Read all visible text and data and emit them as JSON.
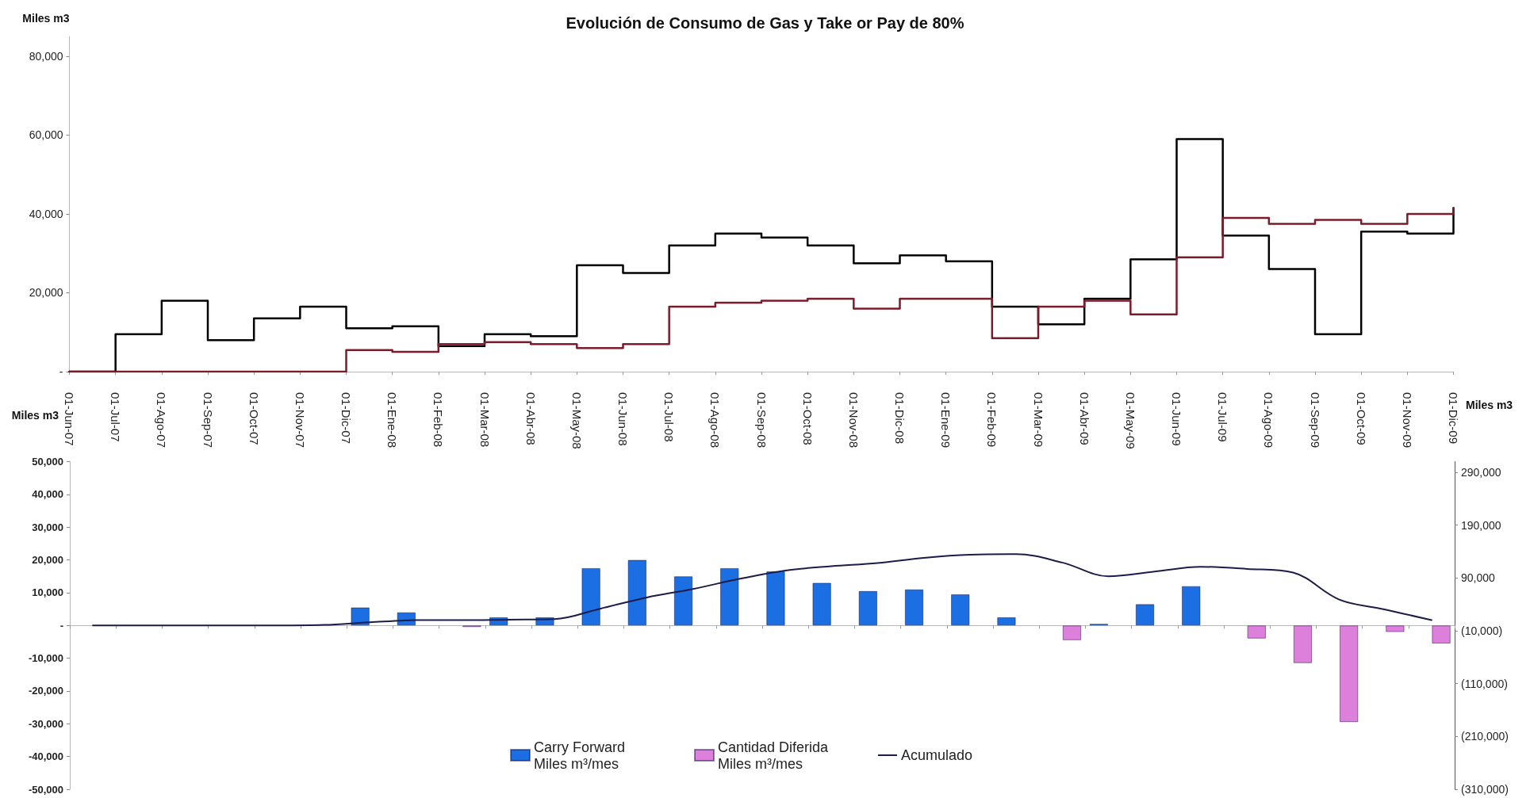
{
  "chart_data": [
    {
      "type": "step",
      "title": "Evolución de Consumo de Gas y Take or Pay de 80%",
      "ylabel": "Miles m3",
      "categories": [
        "01-Jun-07",
        "01-Jul-07",
        "01-Ago-07",
        "01-Sep-07",
        "01-Oct-07",
        "01-Nov-07",
        "01-Dic-07",
        "01-Ene-08",
        "01-Feb-08",
        "01-Mar-08",
        "01-Abr-08",
        "01-May-08",
        "01-Jun-08",
        "01-Jul-08",
        "01-Ago-08",
        "01-Sep-08",
        "01-Oct-08",
        "01-Nov-08",
        "01-Dic-08",
        "01-Ene-09",
        "01-Feb-09",
        "01-Mar-09",
        "01-Abr-09",
        "01-May-09",
        "01-Jun-09",
        "01-Jul-09",
        "01-Ago-09",
        "01-Sep-09",
        "01-Oct-09",
        "01-Nov-09",
        "01-Dic-09"
      ],
      "series": [
        {
          "color": "#000000",
          "values": [
            0,
            9500,
            18000,
            8000,
            13500,
            16500,
            11000,
            11500,
            6500,
            9500,
            9000,
            27000,
            25000,
            32000,
            35000,
            34000,
            32000,
            27500,
            29500,
            28000,
            16500,
            12000,
            18500,
            28500,
            59000,
            34500,
            26000,
            9500,
            35500,
            35000,
            41500
          ]
        },
        {
          "color": "#7a1c2c",
          "values": [
            0,
            0,
            0,
            0,
            0,
            0,
            5500,
            5000,
            7000,
            7500,
            7000,
            6000,
            7000,
            16500,
            17500,
            18000,
            18500,
            16000,
            18500,
            18500,
            8500,
            16500,
            18000,
            14500,
            29000,
            39000,
            37500,
            38500,
            37500,
            40000,
            41500
          ]
        }
      ],
      "ylim": [
        0,
        85000
      ],
      "yticks": [
        {
          "value": 0,
          "label": "-"
        },
        {
          "value": 20000,
          "label": "20,000"
        },
        {
          "value": 40000,
          "label": "40,000"
        },
        {
          "value": 60000,
          "label": "60,000"
        },
        {
          "value": 80000,
          "label": "80,000"
        }
      ],
      "marker": "none"
    },
    {
      "type": "bar",
      "ylabel": "Miles m3",
      "y2label": "Miles m3",
      "categories": [
        null,
        null,
        null,
        null,
        null,
        null,
        null,
        null,
        null,
        null,
        null,
        null,
        null,
        null,
        null,
        null,
        null,
        null,
        null,
        null,
        null,
        null,
        null,
        null,
        null,
        null,
        null,
        null,
        null,
        null
      ],
      "series": [
        {
          "name": "Carry Forward Miles m³/mes",
          "color": "#1c6fe2",
          "values": [
            null,
            null,
            null,
            null,
            null,
            null,
            5500,
            4000,
            null,
            2500,
            2500,
            17500,
            20000,
            15000,
            17500,
            16500,
            13000,
            10500,
            11000,
            9500,
            2500,
            null,
            500,
            6500,
            12000,
            null,
            null,
            null,
            null,
            null
          ]
        },
        {
          "name": "Cantidad Diferida Miles m³/mes",
          "color": "#dd80dc",
          "values": [
            null,
            null,
            null,
            null,
            null,
            null,
            null,
            null,
            -500,
            null,
            null,
            null,
            null,
            null,
            null,
            null,
            null,
            null,
            null,
            null,
            null,
            -4500,
            null,
            null,
            null,
            -4000,
            -11500,
            -29500,
            -2000,
            -5500
          ]
        },
        {
          "name": "Acumulado",
          "type": "line",
          "axis": "y2",
          "color": "#1c1c48",
          "values": [
            0,
            0,
            0,
            0,
            0,
            1000,
            6000,
            10000,
            10000,
            11000,
            12000,
            32000,
            53000,
            69000,
            88000,
            104000,
            112000,
            118000,
            128000,
            134000,
            135000,
            119000,
            93000,
            102000,
            111000,
            107000,
            100000,
            49000,
            30000,
            10000
          ]
        }
      ],
      "ylim": [
        -50000,
        50000
      ],
      "yticks": [
        {
          "value": -50000,
          "label": "-50,000"
        },
        {
          "value": -40000,
          "label": "-40,000"
        },
        {
          "value": -30000,
          "label": "-30,000"
        },
        {
          "value": -20000,
          "label": "-20,000"
        },
        {
          "value": -10000,
          "label": "-10,000"
        },
        {
          "value": 0,
          "label": "-"
        },
        {
          "value": 10000,
          "label": "10,000"
        },
        {
          "value": 20000,
          "label": "20,000"
        },
        {
          "value": 30000,
          "label": "30,000"
        },
        {
          "value": 40000,
          "label": "40,000"
        },
        {
          "value": 50000,
          "label": "50,000"
        }
      ],
      "y2lim": [
        -310000,
        310000
      ],
      "y2ticks": [
        {
          "value": -310000,
          "label": "(310,000)"
        },
        {
          "value": -210000,
          "label": "(210,000)"
        },
        {
          "value": -110000,
          "label": "(110,000)"
        },
        {
          "value": -10000,
          "label": "(10,000)"
        },
        {
          "value": 90000,
          "label": "90,000"
        },
        {
          "value": 190000,
          "label": "190,000"
        },
        {
          "value": 290000,
          "label": "290,000"
        }
      ],
      "legend": "bottom",
      "marker": "none"
    }
  ]
}
